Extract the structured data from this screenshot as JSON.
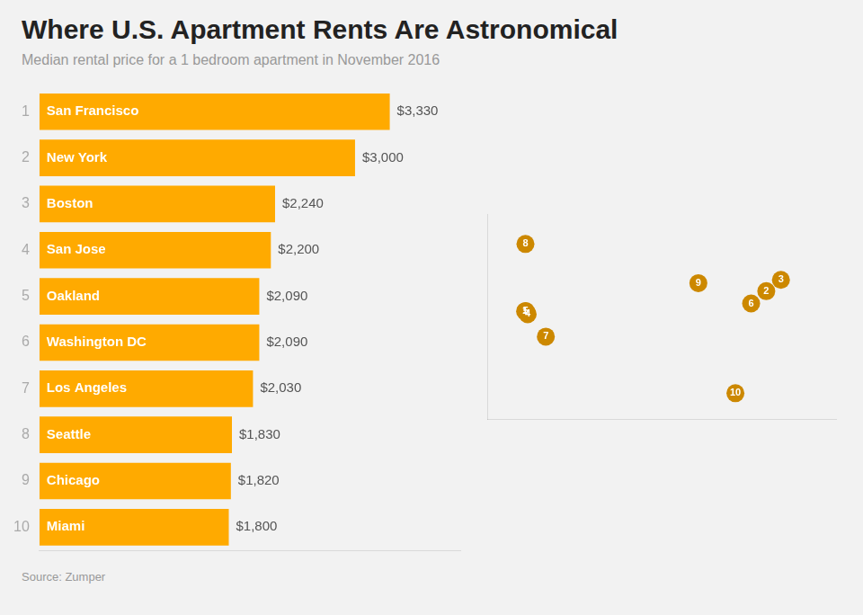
{
  "chart_data": [
    {
      "type": "bar",
      "title": "Where U.S. Apartment Rents Are Astronomical",
      "subtitle": "Median rental price for a 1 bedroom apartment in November 2016",
      "annotations": [
        "Source: Zumper"
      ],
      "orientation": "horizontal",
      "categories": [
        "San Francisco",
        "New York",
        "Boston",
        "San Jose",
        "Oakland",
        "Washington DC",
        "Los Angeles",
        "Seattle",
        "Chicago",
        "Miami"
      ],
      "values": [
        3330,
        3000,
        2240,
        2200,
        2090,
        2090,
        2030,
        1830,
        1820,
        1800
      ],
      "value_labels": [
        "$3,330",
        "$3,000",
        "$2,240",
        "$2,200",
        "$2,090",
        "$2,090",
        "$2,030",
        "$1,830",
        "$1,820",
        "$1,800"
      ],
      "ranks": [
        1,
        2,
        3,
        4,
        5,
        6,
        7,
        8,
        9,
        10
      ],
      "color": "#FFAA00",
      "xlim": [
        0,
        4000
      ],
      "xticks": [
        0,
        1000,
        2000,
        3000,
        4000
      ],
      "grid": false,
      "data_labels": true,
      "tick_labels": "y"
    },
    {
      "type": "scatter",
      "x": [
        -122.4,
        -74.0,
        -71.06,
        -121.89,
        -122.27,
        -77.04,
        -118.24,
        -122.33,
        -87.63,
        -80.19
      ],
      "y": [
        37.77,
        40.71,
        42.36,
        37.34,
        37.8,
        38.91,
        34.05,
        47.61,
        41.88,
        25.77
      ],
      "ranks": [
        1,
        2,
        3,
        4,
        5,
        6,
        7,
        8,
        9,
        10
      ],
      "color": "#CC8800",
      "xlim": [
        -130,
        -60
      ],
      "xticks": [
        -130,
        -120,
        -110,
        -100,
        -90,
        -80,
        -70,
        -60
      ],
      "ylim": [
        22,
        52
      ],
      "yticks": [
        22,
        32,
        42,
        52
      ],
      "grid": false,
      "tick_labels": false
    }
  ]
}
